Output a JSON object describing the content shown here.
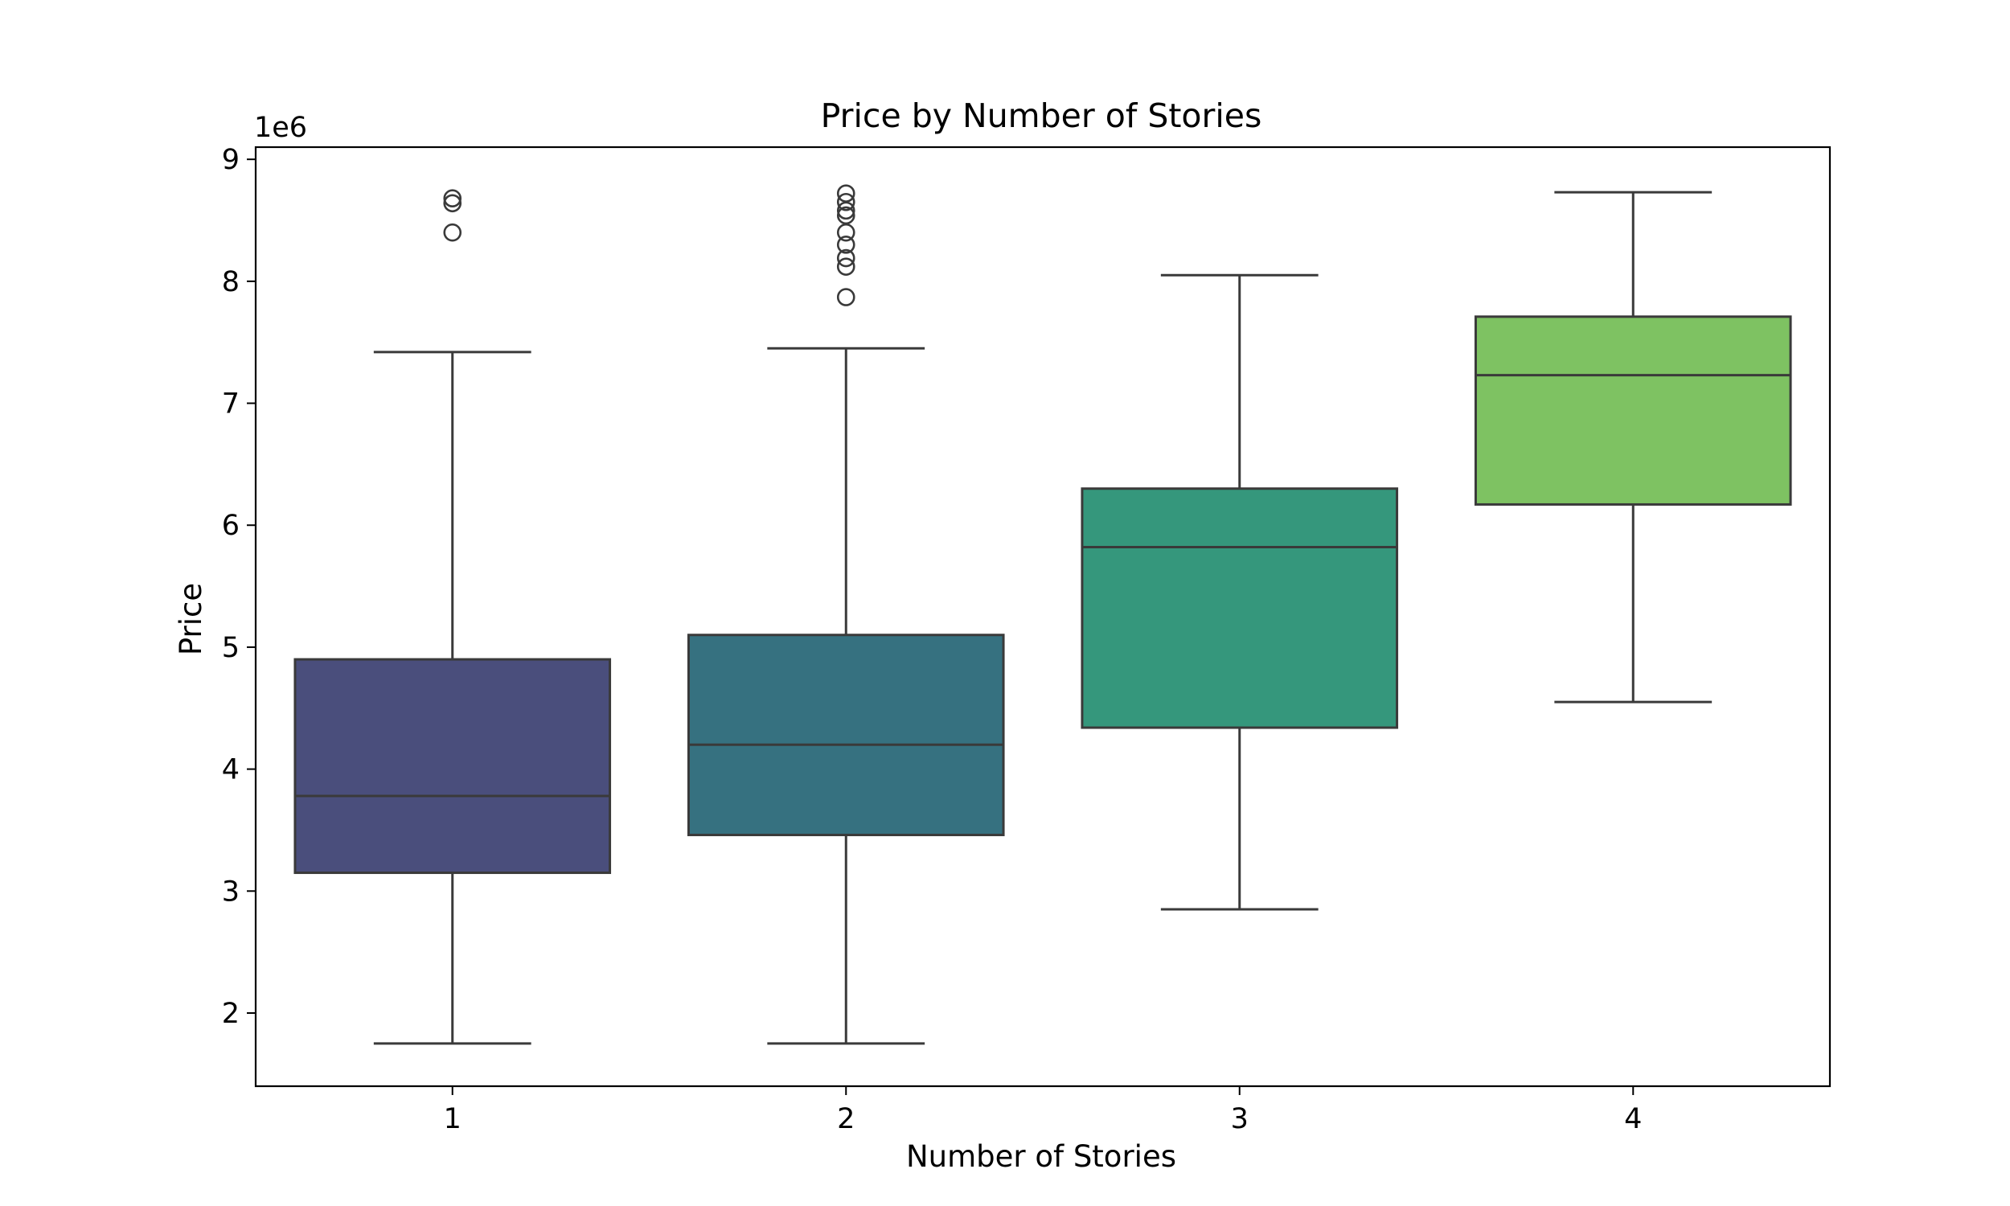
{
  "chart_data": {
    "type": "box",
    "title": "Price by Number of Stories",
    "xlabel": "Number of Stories",
    "ylabel": "Price",
    "y_scale_label": "1e6",
    "ylim": [
      1.4,
      9.1
    ],
    "yticks": [
      2,
      3,
      4,
      5,
      6,
      7,
      8,
      9
    ],
    "categories": [
      "1",
      "2",
      "3",
      "4"
    ],
    "boxes": [
      {
        "category": "1",
        "whisker_low": 1.75,
        "q1": 3.15,
        "median": 3.78,
        "q3": 4.9,
        "whisker_high": 7.42,
        "outliers": [
          8.4,
          8.64,
          8.68
        ],
        "color": "#4a4e7c"
      },
      {
        "category": "2",
        "whisker_low": 1.75,
        "q1": 3.46,
        "median": 4.2,
        "q3": 5.1,
        "whisker_high": 7.45,
        "outliers": [
          7.87,
          8.12,
          8.19,
          8.3,
          8.4,
          8.54,
          8.58,
          8.65,
          8.72
        ],
        "color": "#367180"
      },
      {
        "category": "3",
        "whisker_low": 2.85,
        "q1": 4.34,
        "median": 5.82,
        "q3": 6.3,
        "whisker_high": 8.05,
        "outliers": [],
        "color": "#35977c"
      },
      {
        "category": "4",
        "whisker_low": 4.55,
        "q1": 6.17,
        "median": 7.23,
        "q3": 7.71,
        "whisker_high": 8.73,
        "outliers": [],
        "color": "#7ec262"
      }
    ],
    "grid": false,
    "legend": "none"
  }
}
